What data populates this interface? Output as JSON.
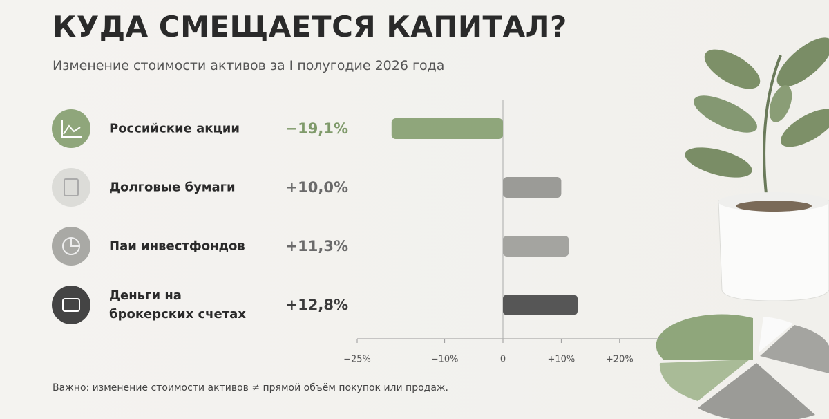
{
  "chart_data": {
    "type": "bar",
    "orientation": "horizontal",
    "title": "КУДА СМЕЩАЕТСЯ КАПИТАЛ?",
    "subtitle": "Изменение стоимости активов за I полугодие 2026 года",
    "categories": [
      "Российские акции",
      "Долговые бумаги",
      "Паи инвестфондов",
      "Деньги на брокерских счетах"
    ],
    "values": [
      -19.1,
      10.0,
      11.3,
      12.8
    ],
    "value_labels": [
      "−19,1%",
      "+10,0%",
      "+11,3%",
      "+12,8%"
    ],
    "colors": [
      "#8fa67b",
      "#9b9b97",
      "#a4a4a0",
      "#565656"
    ],
    "label_colors": [
      "#7f9a6a",
      "#6a6a6a",
      "#6a6a6a",
      "#3a3a3a"
    ],
    "xlim": [
      -25,
      25
    ],
    "xticks": [
      {
        "value": -25,
        "label": "−25%"
      },
      {
        "value": -10,
        "label": "−10%"
      },
      0,
      {
        "value": 10,
        "label": "+10%"
      },
      {
        "value": 20,
        "label": "+20%"
      }
    ],
    "note": "Важно: изменение стоимости активов ≠ прямой объём покупок или продаж."
  }
}
